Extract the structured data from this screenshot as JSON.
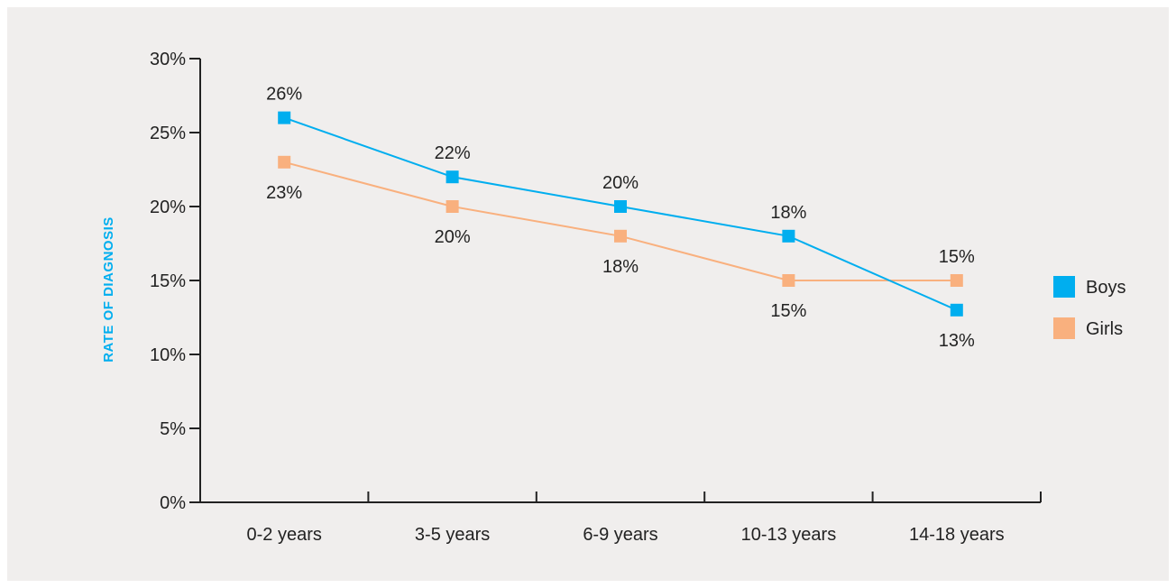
{
  "chart_data": {
    "type": "line",
    "title": "",
    "xlabel": "",
    "ylabel": "RATE OF DIAGNOSIS",
    "categories": [
      "0-2 years",
      "3-5 years",
      "6-9 years",
      "10-13 years",
      "14-18 years"
    ],
    "y_ticks": [
      "0%",
      "5%",
      "10%",
      "15%",
      "20%",
      "25%",
      "30%"
    ],
    "ylim": [
      0,
      30
    ],
    "grid": false,
    "legend_position": "right",
    "series": [
      {
        "name": "Boys",
        "color": "#00aeef",
        "values": [
          26,
          22,
          20,
          18,
          13
        ],
        "labels": [
          "26%",
          "22%",
          "20%",
          "18%",
          "13%"
        ],
        "label_placement": [
          "above",
          "above",
          "above",
          "above",
          "below"
        ]
      },
      {
        "name": "Girls",
        "color": "#f9b07e",
        "values": [
          23,
          20,
          18,
          15,
          15
        ],
        "labels": [
          "23%",
          "20%",
          "18%",
          "15%",
          "15%"
        ],
        "label_placement": [
          "below",
          "below",
          "below",
          "below",
          "above"
        ]
      }
    ],
    "ylabel_color": "#00aeef"
  }
}
